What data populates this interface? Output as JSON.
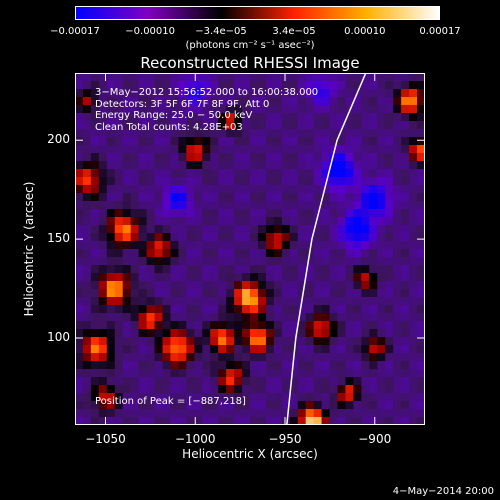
{
  "chart_data": {
    "type": "heatmap",
    "title": "Reconstructed RHESSI Image",
    "xlabel": "Heliocentric X (arcsec)",
    "ylabel": "Heliocentric Y (arcsec)",
    "xlim": [
      -1067,
      -872
    ],
    "ylim": [
      56,
      234
    ],
    "xticks": [
      {
        "value": -1050,
        "label": "−1050"
      },
      {
        "value": -1000,
        "label": "−1000"
      },
      {
        "value": -950,
        "label": "−950"
      },
      {
        "value": -900,
        "label": "−900"
      }
    ],
    "yticks": [
      {
        "value": 100,
        "label": "100"
      },
      {
        "value": 150,
        "label": "150"
      },
      {
        "value": 200,
        "label": "200"
      }
    ],
    "colorbar": {
      "range": [
        -0.00017,
        0.00017
      ],
      "ticks": [
        {
          "value": -0.00017,
          "label": "−0.00017"
        },
        {
          "value": -0.0001,
          "label": "−0.00010"
        },
        {
          "value": -3.4e-05,
          "label": "−3.4e−05"
        },
        {
          "value": 3.4e-05,
          "label": "3.4e−05"
        },
        {
          "value": 0.0001,
          "label": "0.00010"
        },
        {
          "value": 0.00017,
          "label": "0.00017"
        }
      ],
      "unit": "(photons cm⁻² s⁻¹ asec⁻²)",
      "colors": [
        "#0000ff",
        "#8000c0",
        "#000000",
        "#ff2000",
        "#ffb000",
        "#ffffff"
      ]
    },
    "limb_line": {
      "points": [
        [
          -949,
          56
        ],
        [
          -944,
          100
        ],
        [
          -935,
          150
        ],
        [
          -921,
          200
        ],
        [
          -905,
          234
        ]
      ]
    },
    "annotations": [
      "3−May−2012 15:56:52.000 to 16:00:38.000",
      "Detectors: 3F 5F 6F 7F 8F 9F, Att 0",
      "Energy Range: 25.0 − 50.0 keV",
      "Clean      Total counts: 4.28E+03"
    ],
    "peak_label": "Position of Peak = [−887,218]",
    "sources": [
      {
        "x": -935,
        "y": 58,
        "amp": 1.0,
        "sigma": 5
      },
      {
        "x": -880,
        "y": 220,
        "amp": 0.8,
        "sigma": 5
      },
      {
        "x": -875,
        "y": 195,
        "amp": 0.7,
        "sigma": 4
      },
      {
        "x": -1060,
        "y": 180,
        "amp": 0.6,
        "sigma": 6
      },
      {
        "x": -1040,
        "y": 155,
        "amp": 0.75,
        "sigma": 6
      },
      {
        "x": -1020,
        "y": 145,
        "amp": 0.6,
        "sigma": 5
      },
      {
        "x": -1045,
        "y": 125,
        "amp": 0.8,
        "sigma": 6
      },
      {
        "x": -1055,
        "y": 95,
        "amp": 0.7,
        "sigma": 6
      },
      {
        "x": -1025,
        "y": 110,
        "amp": 0.65,
        "sigma": 5
      },
      {
        "x": -1010,
        "y": 95,
        "amp": 0.8,
        "sigma": 6
      },
      {
        "x": -985,
        "y": 100,
        "amp": 0.75,
        "sigma": 5
      },
      {
        "x": -970,
        "y": 120,
        "amp": 0.9,
        "sigma": 6
      },
      {
        "x": -965,
        "y": 100,
        "amp": 0.8,
        "sigma": 5
      },
      {
        "x": -980,
        "y": 80,
        "amp": 0.6,
        "sigma": 5
      },
      {
        "x": -1000,
        "y": 195,
        "amp": 0.55,
        "sigma": 5
      },
      {
        "x": -980,
        "y": 210,
        "amp": 0.5,
        "sigma": 4
      },
      {
        "x": -955,
        "y": 150,
        "amp": 0.55,
        "sigma": 5
      },
      {
        "x": -930,
        "y": 105,
        "amp": 0.6,
        "sigma": 5
      },
      {
        "x": -900,
        "y": 95,
        "amp": 0.55,
        "sigma": 4
      },
      {
        "x": -905,
        "y": 130,
        "amp": 0.5,
        "sigma": 4
      },
      {
        "x": -915,
        "y": 72,
        "amp": 0.6,
        "sigma": 4
      },
      {
        "x": -1050,
        "y": 70,
        "amp": 0.5,
        "sigma": 5
      },
      {
        "x": -1060,
        "y": 220,
        "amp": 0.4,
        "sigma": 4
      },
      {
        "x": -920,
        "y": 185,
        "amp": -0.7,
        "sigma": 6
      },
      {
        "x": -900,
        "y": 170,
        "amp": -0.6,
        "sigma": 6
      },
      {
        "x": -910,
        "y": 155,
        "amp": -0.65,
        "sigma": 6
      },
      {
        "x": -1010,
        "y": 170,
        "amp": -0.5,
        "sigma": 5
      },
      {
        "x": -1000,
        "y": 225,
        "amp": -0.45,
        "sigma": 5
      },
      {
        "x": -930,
        "y": 225,
        "amp": -0.4,
        "sigma": 5
      }
    ]
  },
  "footer": {
    "timestamp": "4−May−2014 20:00"
  }
}
